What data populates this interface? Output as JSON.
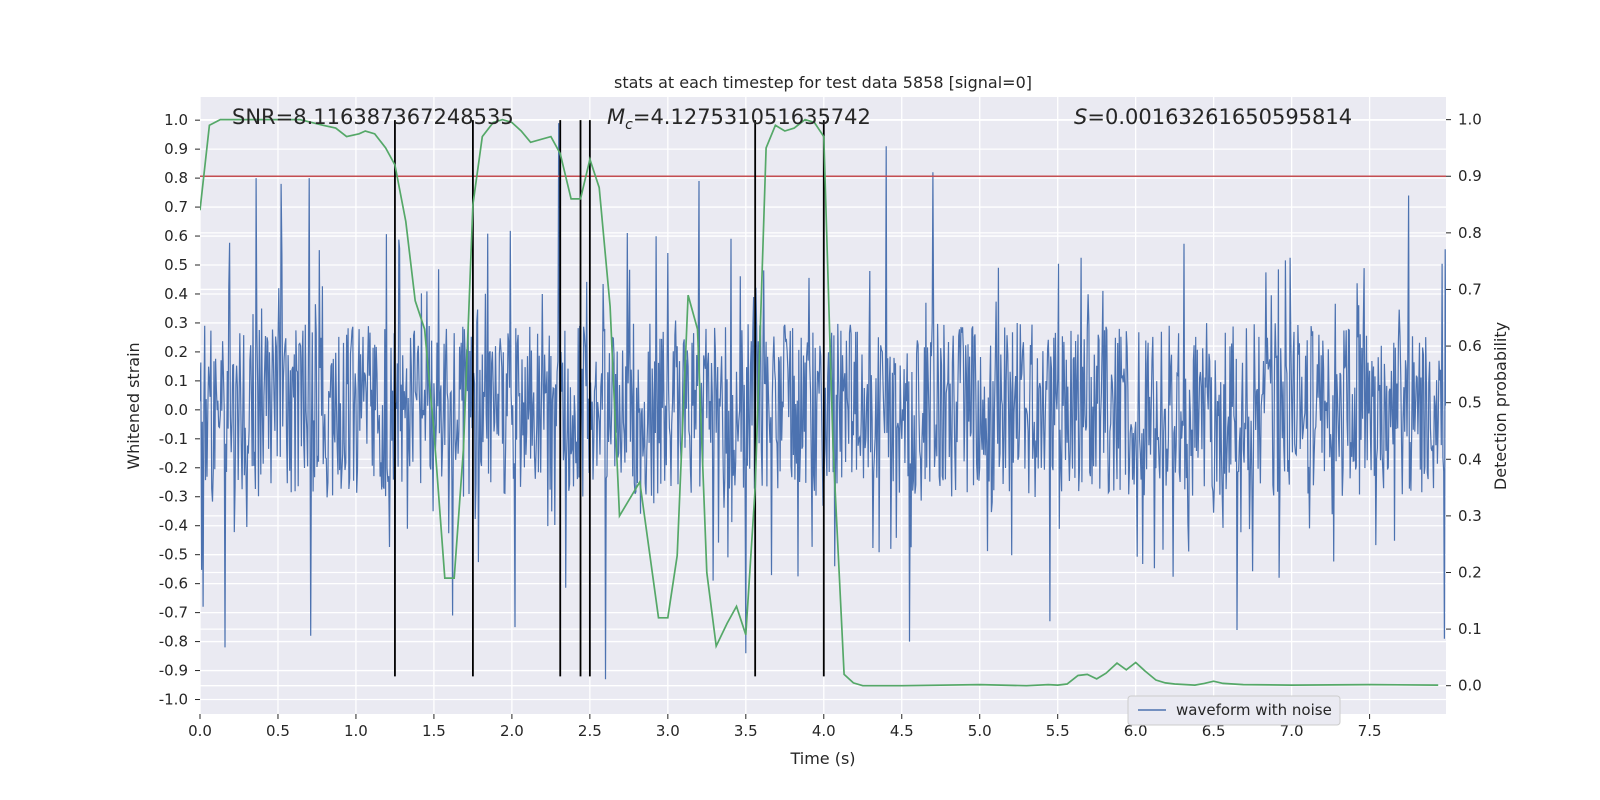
{
  "chart_data": {
    "type": "line",
    "title": "stats at each timestep for test data 5858 [signal=0]",
    "xlabel": "Time (s)",
    "ylabel_left": "Whitened strain",
    "ylabel_right": "Detection probability",
    "xlim": [
      0,
      7.99
    ],
    "ylim_left": [
      -1.05,
      1.08
    ],
    "ylim_right": [
      -0.05,
      1.04
    ],
    "x_ticks": [
      "0.0",
      "0.5",
      "1.0",
      "1.5",
      "2.0",
      "2.5",
      "3.0",
      "3.5",
      "4.0",
      "4.5",
      "5.0",
      "5.5",
      "6.0",
      "6.5",
      "7.0",
      "7.5"
    ],
    "y_ticks_left": [
      "-1.0",
      "-0.9",
      "-0.8",
      "-0.7",
      "-0.6",
      "-0.5",
      "-0.4",
      "-0.3",
      "-0.2",
      "-0.1",
      "0.0",
      "0.1",
      "0.2",
      "0.3",
      "0.4",
      "0.5",
      "0.6",
      "0.7",
      "0.8",
      "0.9",
      "1.0"
    ],
    "y_ticks_right": [
      "0.0",
      "0.1",
      "0.2",
      "0.3",
      "0.4",
      "0.5",
      "0.6",
      "0.7",
      "0.8",
      "0.9",
      "1.0"
    ],
    "grid": true,
    "legend_position": "lower-right",
    "background_color": "#eaeaf2",
    "annotations": {
      "snr_prefix": "SNR=",
      "snr": "8.116387367248535",
      "mc_symbol": "M",
      "mc_subscript": "c",
      "mc_eq": "=",
      "mc": "4.127531051635742",
      "s_symbol": "S",
      "s_eq": "=",
      "s": "0.00163261650595814"
    },
    "threshold": {
      "axis": "right",
      "value": 0.9,
      "color": "#c44e52"
    },
    "vertical_markers": [
      1.25,
      1.75,
      2.31,
      2.44,
      2.5,
      3.56,
      4.0
    ],
    "marker_range": [
      -0.92,
      1.0
    ],
    "series": [
      {
        "name": "waveform with noise",
        "axis": "left",
        "color": "#4c72b0",
        "kind": "noise",
        "sample_rate": 200,
        "core_amplitude": 0.3,
        "spike_amplitude": 0.62,
        "peaks": [
          {
            "x": 0.02,
            "y": 0.72
          },
          {
            "x": 0.02,
            "y": -0.68
          },
          {
            "x": 0.16,
            "y": -0.82
          },
          {
            "x": 0.36,
            "y": 0.8
          },
          {
            "x": 0.52,
            "y": 0.78
          },
          {
            "x": 0.7,
            "y": 0.8
          },
          {
            "x": 0.71,
            "y": -0.78
          },
          {
            "x": 1.25,
            "y": -0.66
          },
          {
            "x": 1.62,
            "y": -0.71
          },
          {
            "x": 2.02,
            "y": -0.75
          },
          {
            "x": 2.3,
            "y": 0.99
          },
          {
            "x": 2.6,
            "y": -0.93
          },
          {
            "x": 3.2,
            "y": 0.79
          },
          {
            "x": 3.5,
            "y": -0.84
          },
          {
            "x": 4.4,
            "y": 0.91
          },
          {
            "x": 4.55,
            "y": -0.8
          },
          {
            "x": 4.7,
            "y": 0.82
          },
          {
            "x": 5.45,
            "y": -0.73
          },
          {
            "x": 6.65,
            "y": -0.76
          },
          {
            "x": 7.75,
            "y": 0.74
          },
          {
            "x": 7.98,
            "y": -0.79
          }
        ]
      },
      {
        "name": "",
        "axis": "right",
        "color": "#55a868",
        "kind": "line",
        "points": [
          [
            0.0,
            0.84
          ],
          [
            0.06,
            0.99
          ],
          [
            0.13,
            1.0
          ],
          [
            0.5,
            1.0
          ],
          [
            0.64,
            1.0
          ],
          [
            0.79,
            0.99
          ],
          [
            0.87,
            0.985
          ],
          [
            0.94,
            0.97
          ],
          [
            1.02,
            0.975
          ],
          [
            1.06,
            0.98
          ],
          [
            1.12,
            0.975
          ],
          [
            1.19,
            0.95
          ],
          [
            1.25,
            0.92
          ],
          [
            1.32,
            0.82
          ],
          [
            1.38,
            0.68
          ],
          [
            1.44,
            0.63
          ],
          [
            1.5,
            0.45
          ],
          [
            1.57,
            0.19
          ],
          [
            1.63,
            0.19
          ],
          [
            1.69,
            0.42
          ],
          [
            1.75,
            0.85
          ],
          [
            1.81,
            0.97
          ],
          [
            1.88,
            0.995
          ],
          [
            1.94,
            1.0
          ],
          [
            2.0,
            0.995
          ],
          [
            2.06,
            0.98
          ],
          [
            2.12,
            0.96
          ],
          [
            2.25,
            0.97
          ],
          [
            2.31,
            0.94
          ],
          [
            2.38,
            0.86
          ],
          [
            2.44,
            0.86
          ],
          [
            2.5,
            0.93
          ],
          [
            2.56,
            0.88
          ],
          [
            2.63,
            0.67
          ],
          [
            2.69,
            0.3
          ],
          [
            2.82,
            0.36
          ],
          [
            2.94,
            0.12
          ],
          [
            3.0,
            0.12
          ],
          [
            3.06,
            0.23
          ],
          [
            3.13,
            0.69
          ],
          [
            3.19,
            0.63
          ],
          [
            3.25,
            0.2
          ],
          [
            3.31,
            0.07
          ],
          [
            3.38,
            0.11
          ],
          [
            3.44,
            0.14
          ],
          [
            3.5,
            0.09
          ],
          [
            3.56,
            0.35
          ],
          [
            3.63,
            0.95
          ],
          [
            3.69,
            0.99
          ],
          [
            3.75,
            0.98
          ],
          [
            3.81,
            0.985
          ],
          [
            3.88,
            1.0
          ],
          [
            3.94,
            0.995
          ],
          [
            4.0,
            0.97
          ],
          [
            4.06,
            0.42
          ],
          [
            4.13,
            0.02
          ],
          [
            4.19,
            0.005
          ],
          [
            4.25,
            0.0
          ],
          [
            4.5,
            0.0
          ],
          [
            5.0,
            0.002
          ],
          [
            5.3,
            0.0
          ],
          [
            5.44,
            0.002
          ],
          [
            5.5,
            0.001
          ],
          [
            5.56,
            0.003
          ],
          [
            5.63,
            0.018
          ],
          [
            5.69,
            0.02
          ],
          [
            5.75,
            0.012
          ],
          [
            5.81,
            0.022
          ],
          [
            5.88,
            0.04
          ],
          [
            5.94,
            0.028
          ],
          [
            6.0,
            0.041
          ],
          [
            6.06,
            0.026
          ],
          [
            6.13,
            0.01
          ],
          [
            6.19,
            0.005
          ],
          [
            6.25,
            0.003
          ],
          [
            6.38,
            0.001
          ],
          [
            6.44,
            0.004
          ],
          [
            6.5,
            0.008
          ],
          [
            6.56,
            0.004
          ],
          [
            6.69,
            0.002
          ],
          [
            7.0,
            0.001
          ],
          [
            7.5,
            0.002
          ],
          [
            7.94,
            0.001
          ]
        ]
      }
    ]
  }
}
